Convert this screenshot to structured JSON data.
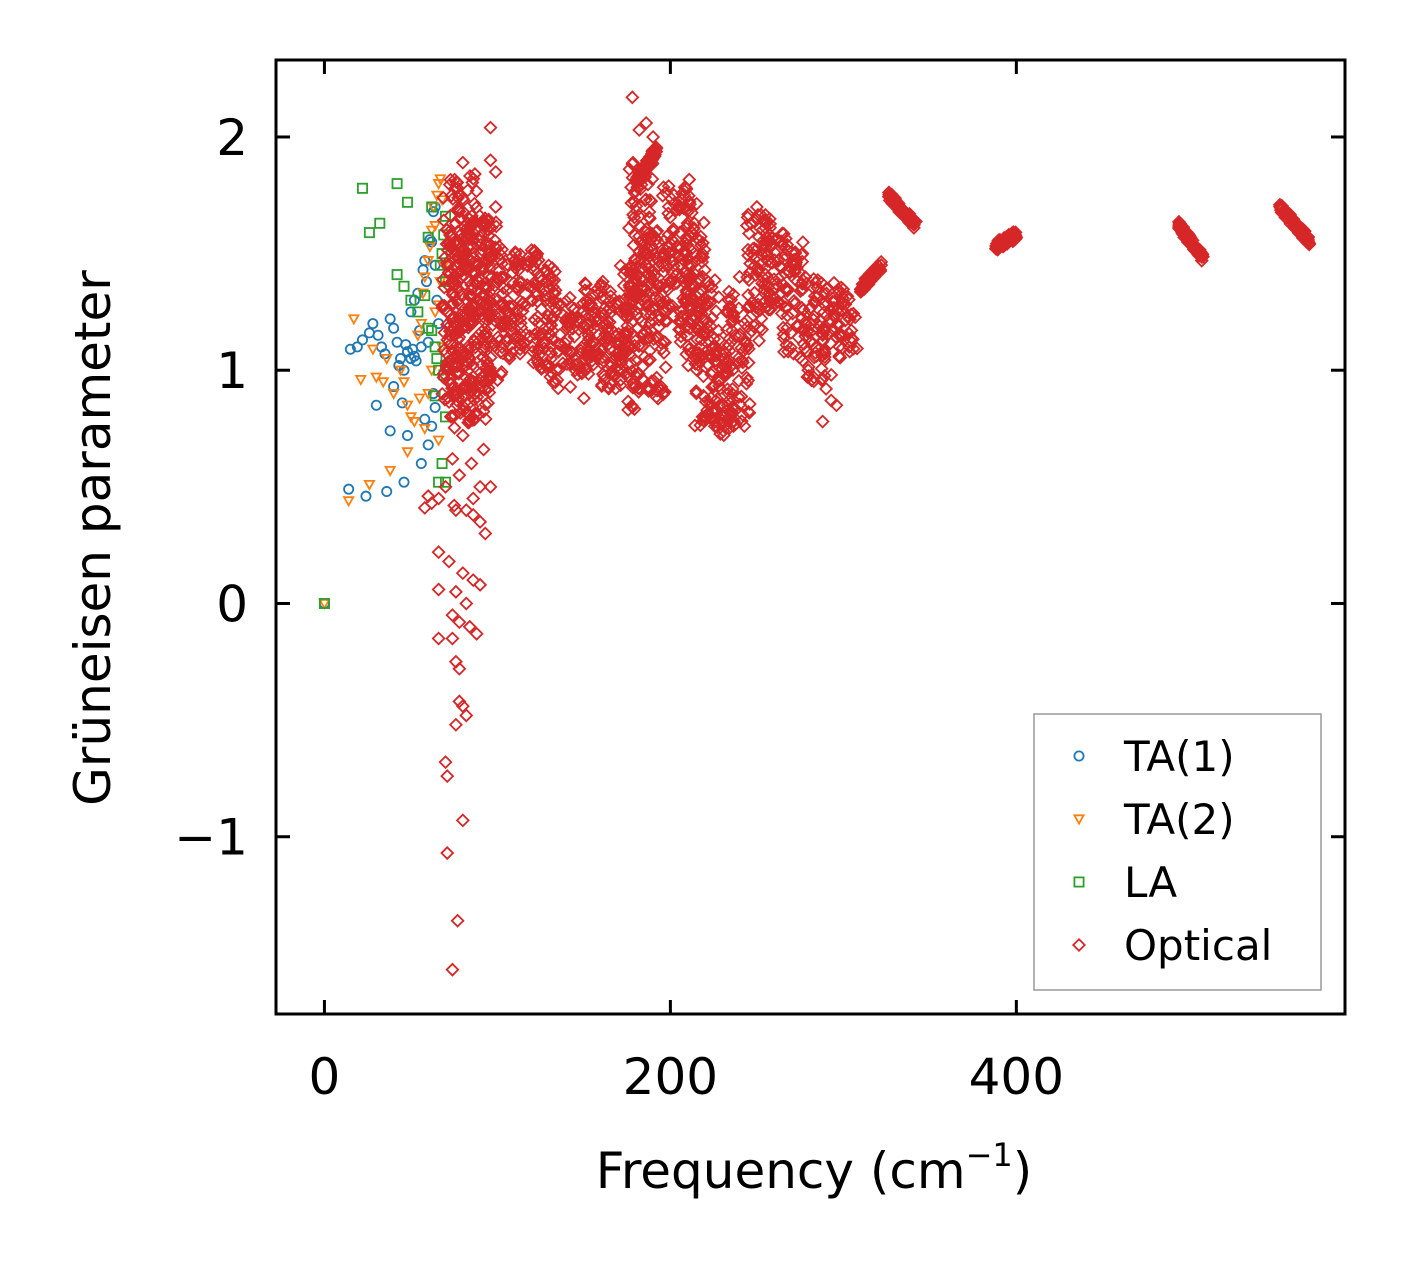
{
  "chart_data": {
    "type": "scatter",
    "title": "",
    "xlabel": "Frequency (cm",
    "xlabel_sup": "−1",
    "xlabel_close": ")",
    "ylabel": "Grüneisen parameter",
    "xlim": [
      -28,
      590
    ],
    "ylim": [
      -1.76,
      2.33
    ],
    "x_ticks": [
      {
        "value": 0,
        "label": "0"
      },
      {
        "value": 200,
        "label": "200"
      },
      {
        "value": 400,
        "label": "400"
      }
    ],
    "y_ticks": [
      {
        "value": -1,
        "label": "−1"
      },
      {
        "value": 0,
        "label": "0"
      },
      {
        "value": 1,
        "label": "1"
      },
      {
        "value": 2,
        "label": "2"
      }
    ],
    "grid": false,
    "legend_position": "bottom-right",
    "series": [
      {
        "name": "TA(1)",
        "marker": "circle",
        "color": "#1f77b4",
        "points": [
          [
            0,
            0
          ],
          [
            14,
            0.49
          ],
          [
            24,
            0.46
          ],
          [
            30,
            0.85
          ],
          [
            36,
            0.48
          ],
          [
            46,
            0.52
          ],
          [
            48,
            0.72
          ],
          [
            56,
            0.6
          ],
          [
            15,
            1.09
          ],
          [
            19,
            1.1
          ],
          [
            22,
            1.13
          ],
          [
            26,
            1.16
          ],
          [
            28,
            1.2
          ],
          [
            31,
            1.15
          ],
          [
            33,
            1.1
          ],
          [
            35,
            1.07
          ],
          [
            38,
            1.22
          ],
          [
            40,
            1.18
          ],
          [
            42,
            1.12
          ],
          [
            44,
            1.05
          ],
          [
            46,
            1.0
          ],
          [
            48,
            1.08
          ],
          [
            50,
            1.25
          ],
          [
            52,
            1.3
          ],
          [
            54,
            1.33
          ],
          [
            55,
            1.17
          ],
          [
            56,
            1.1
          ],
          [
            57,
            1.43
          ],
          [
            58,
            1.47
          ],
          [
            59,
            1.38
          ],
          [
            60,
            1.12
          ],
          [
            61,
            1.56
          ],
          [
            62,
            1.55
          ],
          [
            63,
            1.68
          ],
          [
            64,
            1.7
          ],
          [
            64,
            1.45
          ],
          [
            65,
            1.3
          ],
          [
            66,
            1.2
          ],
          [
            63,
            0.9
          ],
          [
            64,
            0.84
          ],
          [
            62,
            0.76
          ],
          [
            45,
            0.86
          ],
          [
            40,
            0.93
          ],
          [
            38,
            0.74
          ],
          [
            50,
            1.05
          ],
          [
            52,
            1.06
          ],
          [
            53,
            1.04
          ],
          [
            51,
            1.09
          ],
          [
            47,
            1.11
          ],
          [
            43,
            1.02
          ],
          [
            60,
            0.68
          ],
          [
            58,
            0.79
          ]
        ]
      },
      {
        "name": "TA(2)",
        "marker": "triangle-down",
        "color": "#ff7f0e",
        "points": [
          [
            0,
            0
          ],
          [
            14,
            0.44
          ],
          [
            26,
            0.51
          ],
          [
            38,
            0.57
          ],
          [
            48,
            0.65
          ],
          [
            17,
            1.22
          ],
          [
            28,
            1.09
          ],
          [
            21,
            0.96
          ],
          [
            30,
            0.97
          ],
          [
            34,
            0.95
          ],
          [
            36,
            1.05
          ],
          [
            40,
            0.9
          ],
          [
            44,
            1.0
          ],
          [
            46,
            0.95
          ],
          [
            48,
            0.85
          ],
          [
            50,
            0.8
          ],
          [
            52,
            0.78
          ],
          [
            54,
            1.15
          ],
          [
            56,
            1.2
          ],
          [
            57,
            1.33
          ],
          [
            58,
            1.4
          ],
          [
            60,
            1.47
          ],
          [
            61,
            1.53
          ],
          [
            62,
            1.6
          ],
          [
            63,
            1.7
          ],
          [
            64,
            1.62
          ],
          [
            65,
            1.75
          ],
          [
            66,
            1.8
          ],
          [
            67,
            1.82
          ],
          [
            68,
            1.73
          ],
          [
            64,
            1.25
          ],
          [
            62,
            1.0
          ],
          [
            60,
            0.9
          ],
          [
            58,
            0.75
          ],
          [
            66,
            0.7
          ],
          [
            68,
            1.1
          ],
          [
            67,
            1.38
          ],
          [
            69,
            1.45
          ],
          [
            66,
            1.28
          ],
          [
            55,
            0.88
          ]
        ]
      },
      {
        "name": "LA",
        "marker": "square",
        "color": "#2ca02c",
        "points": [
          [
            0,
            0
          ],
          [
            22,
            1.78
          ],
          [
            26,
            1.59
          ],
          [
            32,
            1.63
          ],
          [
            42,
            1.8
          ],
          [
            48,
            1.72
          ],
          [
            42,
            1.41
          ],
          [
            46,
            1.36
          ],
          [
            50,
            1.3
          ],
          [
            54,
            1.25
          ],
          [
            58,
            1.32
          ],
          [
            60,
            1.18
          ],
          [
            62,
            1.17
          ],
          [
            64,
            1.1
          ],
          [
            65,
            1.05
          ],
          [
            66,
            1.0
          ],
          [
            67,
            1.45
          ],
          [
            68,
            1.5
          ],
          [
            69,
            1.58
          ],
          [
            70,
            1.66
          ],
          [
            70,
            1.02
          ],
          [
            69,
            0.98
          ],
          [
            70,
            0.8
          ],
          [
            68,
            0.6
          ],
          [
            66,
            0.52
          ],
          [
            70,
            0.52
          ],
          [
            64,
            0.89
          ],
          [
            62,
            1.7
          ],
          [
            60,
            1.57
          ],
          [
            70,
            1.38
          ]
        ]
      },
      {
        "name": "Optical",
        "marker": "diamond",
        "color": "#d62728",
        "bands": [
          {
            "x": [
              68,
              78
            ],
            "y": [
              0.85,
              1.8
            ]
          },
          {
            "x": [
              72,
              88
            ],
            "y": [
              0.75,
              1.85
            ]
          },
          {
            "x": [
              80,
              96
            ],
            "y": [
              0.78,
              1.7
            ]
          },
          {
            "x": [
              90,
              104
            ],
            "y": [
              0.95,
              1.65
            ]
          },
          {
            "x": [
              100,
              114
            ],
            "y": [
              1.05,
              1.5
            ]
          },
          {
            "x": [
              110,
              124
            ],
            "y": [
              1.08,
              1.52
            ]
          },
          {
            "x": [
              120,
              134
            ],
            "y": [
              1.0,
              1.45
            ]
          },
          {
            "x": [
              130,
              144
            ],
            "y": [
              0.92,
              1.35
            ]
          },
          {
            "x": [
              140,
              156
            ],
            "y": [
              0.98,
              1.3
            ]
          },
          {
            "x": [
              150,
              166
            ],
            "y": [
              1.0,
              1.38
            ]
          },
          {
            "x": [
              160,
              176
            ],
            "y": [
              0.9,
              1.32
            ]
          },
          {
            "x": [
              170,
              184
            ],
            "y": [
              0.82,
              1.45
            ]
          },
          {
            "x": [
              176,
              190
            ],
            "y": [
              1.3,
              1.9
            ]
          },
          {
            "x": [
              184,
              198
            ],
            "y": [
              0.85,
              1.6
            ]
          },
          {
            "x": [
              195,
              212
            ],
            "y": [
              1.2,
              1.82
            ]
          },
          {
            "x": [
              205,
              220
            ],
            "y": [
              1.0,
              1.72
            ]
          },
          {
            "x": [
              214,
              228
            ],
            "y": [
              0.75,
              1.4
            ]
          },
          {
            "x": [
              222,
              236
            ],
            "y": [
              0.72,
              1.1
            ]
          },
          {
            "x": [
              232,
              246
            ],
            "y": [
              0.75,
              1.35
            ]
          },
          {
            "x": [
              244,
              258
            ],
            "y": [
              1.1,
              1.68
            ]
          },
          {
            "x": [
              254,
              268
            ],
            "y": [
              1.25,
              1.6
            ]
          },
          {
            "x": [
              264,
              278
            ],
            "y": [
              1.05,
              1.55
            ]
          },
          {
            "x": [
              276,
              290
            ],
            "y": [
              0.95,
              1.4
            ]
          },
          {
            "x": [
              286,
              300
            ],
            "y": [
              1.05,
              1.38
            ]
          },
          {
            "x": [
              296,
              308
            ],
            "y": [
              1.08,
              1.32
            ]
          }
        ],
        "segments": [
          {
            "x": [
              180,
              192
            ],
            "y": [
              1.8,
              1.95
            ]
          },
          {
            "x": [
              310,
              322
            ],
            "y": [
              1.35,
              1.45
            ]
          },
          {
            "x": [
              326,
              342
            ],
            "y": [
              1.75,
              1.62
            ]
          },
          {
            "x": [
              388,
              400
            ],
            "y": [
              1.53,
              1.58
            ]
          },
          {
            "x": [
              494,
              508
            ],
            "y": [
              1.62,
              1.48
            ]
          },
          {
            "x": [
              552,
              570
            ],
            "y": [
              1.7,
              1.55
            ]
          }
        ],
        "points": [
          [
            178,
            2.17
          ],
          [
            182,
            2.03
          ],
          [
            186,
            2.06
          ],
          [
            190,
            2.0
          ],
          [
            96,
            2.04
          ],
          [
            80,
            1.89
          ],
          [
            96,
            1.9
          ],
          [
            99,
            1.85
          ],
          [
            99,
            1.7
          ],
          [
            250,
            1.7
          ],
          [
            240,
            1.4
          ],
          [
            150,
            0.88
          ],
          [
            145,
            1.0
          ],
          [
            288,
            0.78
          ],
          [
            293,
            0.87
          ],
          [
            296,
            0.85
          ],
          [
            290,
            0.92
          ],
          [
            293,
            0.98
          ],
          [
            75,
            0.42
          ],
          [
            76,
            0.4
          ],
          [
            82,
            0.4
          ],
          [
            86,
            0.38
          ],
          [
            90,
            0.35
          ],
          [
            93,
            0.3
          ],
          [
            66,
            0.22
          ],
          [
            72,
            0.18
          ],
          [
            80,
            0.13
          ],
          [
            86,
            0.1
          ],
          [
            90,
            0.08
          ],
          [
            76,
            0.05
          ],
          [
            82,
            0.0
          ],
          [
            66,
            0.06
          ],
          [
            74,
            -0.05
          ],
          [
            78,
            -0.08
          ],
          [
            84,
            -0.1
          ],
          [
            88,
            -0.13
          ],
          [
            66,
            -0.15
          ],
          [
            74,
            -0.15
          ],
          [
            76,
            -0.25
          ],
          [
            78,
            -0.28
          ],
          [
            78,
            -0.42
          ],
          [
            80,
            -0.44
          ],
          [
            82,
            -0.48
          ],
          [
            76,
            -0.52
          ],
          [
            70,
            -0.68
          ],
          [
            71,
            -0.74
          ],
          [
            80,
            -0.93
          ],
          [
            71,
            -1.07
          ],
          [
            77,
            -1.36
          ],
          [
            74,
            -1.57
          ],
          [
            60,
            0.46
          ],
          [
            62,
            0.43
          ],
          [
            66,
            0.45
          ],
          [
            70,
            0.5
          ],
          [
            58,
            0.41
          ],
          [
            90,
            0.5
          ],
          [
            96,
            0.5
          ],
          [
            78,
            0.55
          ],
          [
            85,
            0.6
          ],
          [
            74,
            0.62
          ],
          [
            92,
            0.66
          ],
          [
            86,
            0.45
          ],
          [
            80,
            0.72
          ]
        ]
      }
    ]
  }
}
